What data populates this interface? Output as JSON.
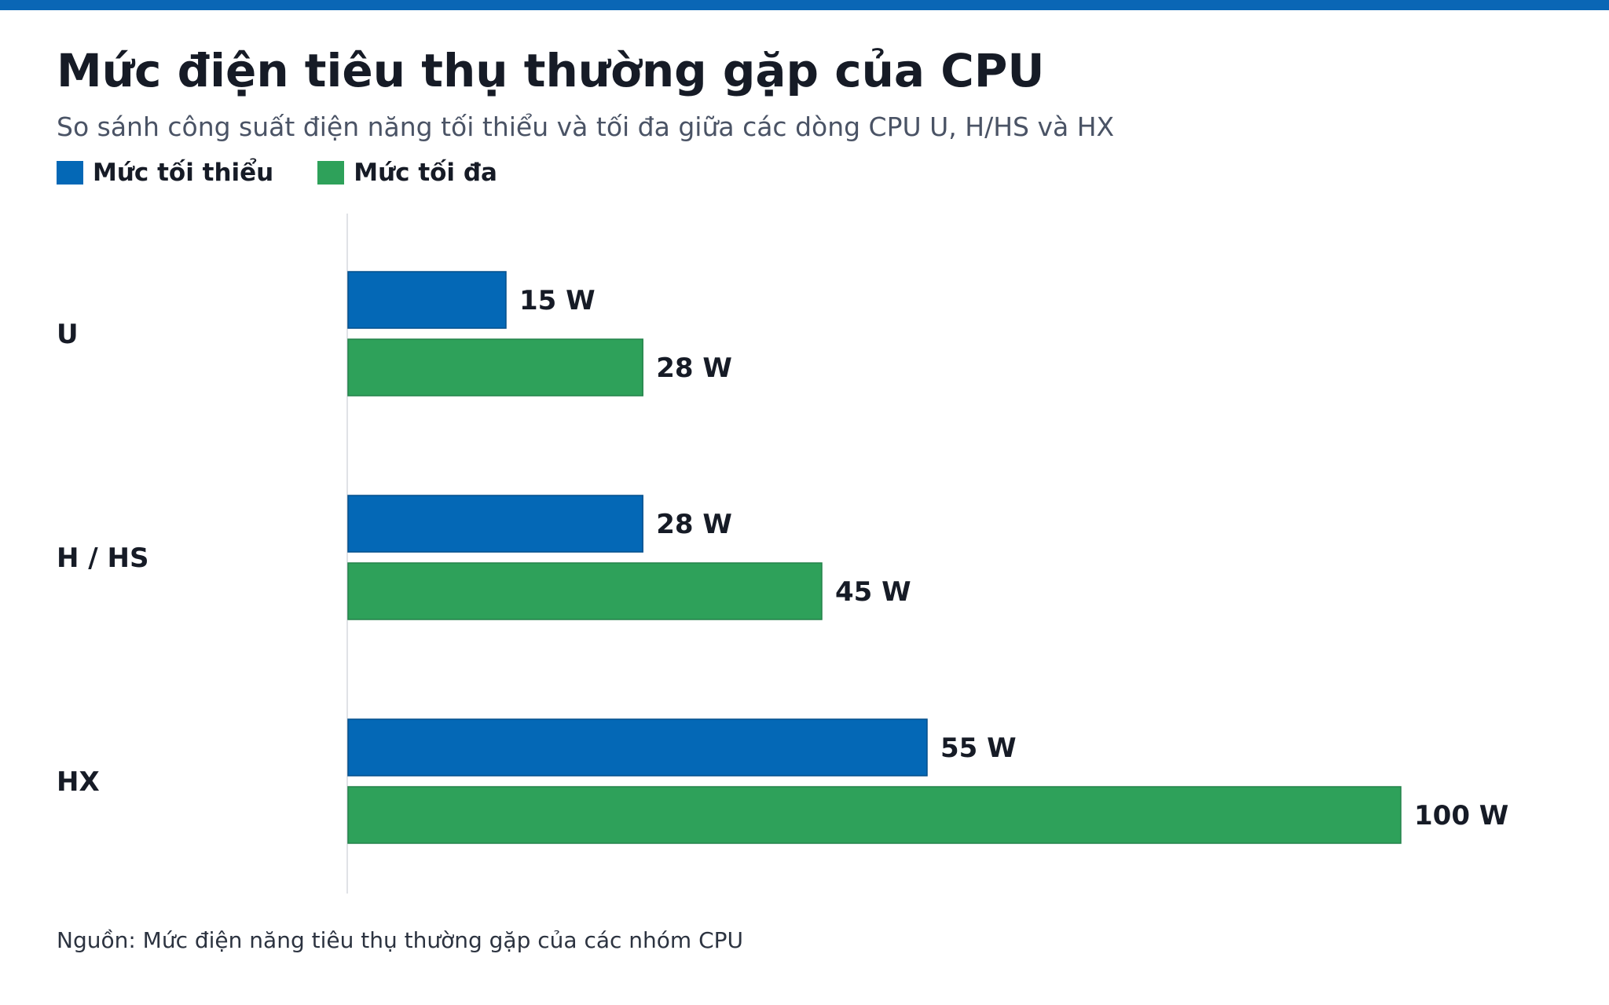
{
  "header": {
    "title": "Mức điện tiêu thụ thường gặp của CPU",
    "subtitle": "So sánh công suất điện năng tối thiểu và tối đa giữa các dòng CPU U, H/HS và HX"
  },
  "legend": {
    "items": [
      {
        "label": "Mức tối thiểu",
        "color": "#0468b6"
      },
      {
        "label": "Mức tối đa",
        "color": "#2ea15a"
      }
    ]
  },
  "chart_data": {
    "type": "bar",
    "orientation": "horizontal",
    "title": "Mức điện tiêu thụ thường gặp của CPU",
    "subtitle": "So sánh công suất điện năng tối thiểu và tối đa giữa các dòng CPU U, H/HS và HX",
    "categories": [
      "U",
      "H / HS",
      "HX"
    ],
    "series": [
      {
        "name": "Mức tối thiểu",
        "values": [
          15,
          28,
          55
        ],
        "color": "#0468b6"
      },
      {
        "name": "Mức tối đa",
        "values": [
          28,
          45,
          100
        ],
        "color": "#2ea15a"
      }
    ],
    "unit": "W",
    "xlim": [
      0,
      100
    ],
    "grid": false,
    "legend_position": "top-left"
  },
  "footer": {
    "source": "Nguồn: Mức điện năng tiêu thụ thường gặp của các nhóm CPU"
  }
}
